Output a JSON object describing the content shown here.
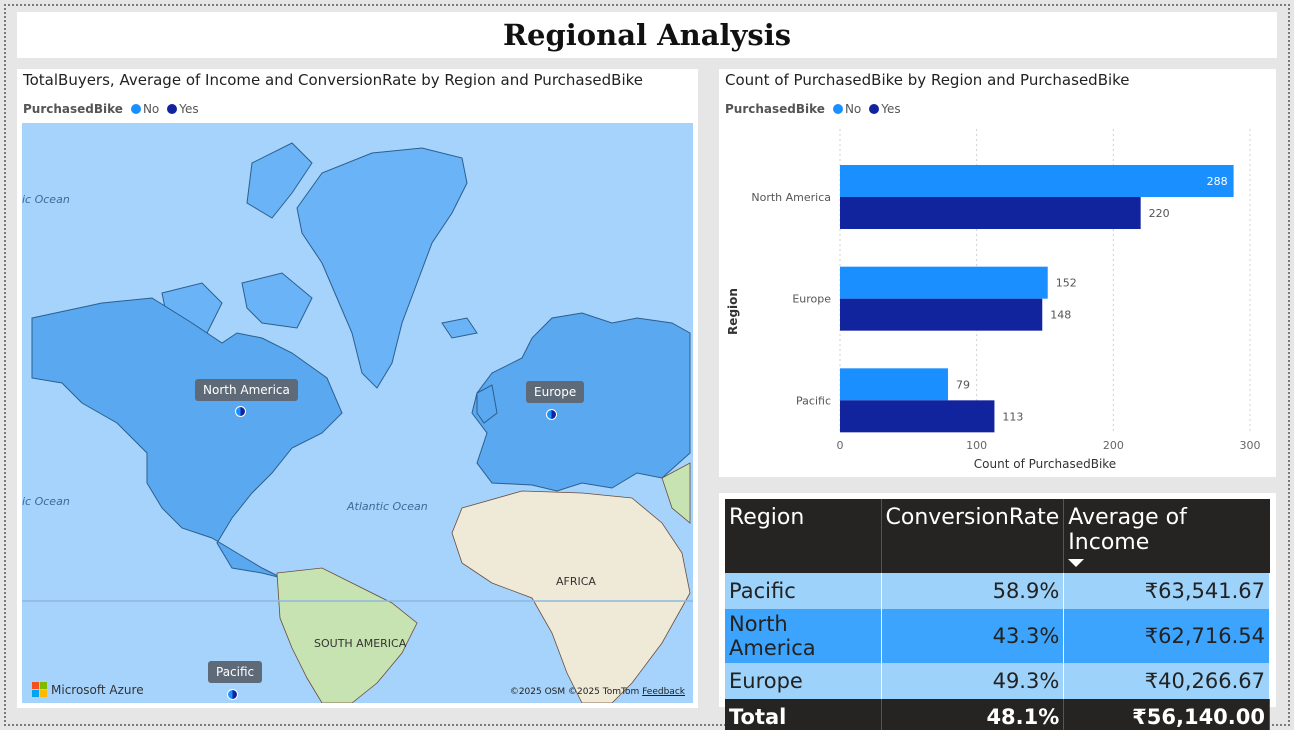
{
  "report": {
    "title": "Regional Analysis"
  },
  "colors": {
    "no": "#1a8fff",
    "yes": "#12239e",
    "table_header": "#252423",
    "row_light": "#9dd2fb",
    "row_dark": "#3da4fd"
  },
  "map": {
    "title": "TotalBuyers, Average of Income and ConversionRate by Region and PurchasedBike",
    "legend": {
      "title": "PurchasedBike",
      "items": [
        {
          "label": "No",
          "color": "#1a8fff"
        },
        {
          "label": "Yes",
          "color": "#12239e"
        }
      ]
    },
    "markers": {
      "north_america": "North America",
      "europe": "Europe",
      "pacific": "Pacific"
    },
    "oceans": {
      "o1": "ic Ocean",
      "o2": "ic Ocean",
      "o3": "Atlantic Ocean"
    },
    "regions": {
      "south_america": "SOUTH AMERICA",
      "africa": "AFRICA"
    },
    "branding": "Microsoft Azure",
    "attribution": "©2025 OSM  ©2025 TomTom",
    "feedback": "Feedback"
  },
  "bar_chart": {
    "title": "Count of PurchasedBike by Region and PurchasedBike",
    "legend": {
      "title": "PurchasedBike",
      "items": [
        {
          "label": "No",
          "color": "#1a8fff"
        },
        {
          "label": "Yes",
          "color": "#12239e"
        }
      ]
    }
  },
  "chart_data": {
    "type": "bar",
    "orientation": "horizontal",
    "title": "Count of PurchasedBike by Region and PurchasedBike",
    "xlabel": "Count of PurchasedBike",
    "ylabel": "Region",
    "categories": [
      "North America",
      "Europe",
      "Pacific"
    ],
    "series": [
      {
        "name": "No",
        "color": "#1a8fff",
        "values": [
          288,
          152,
          79
        ]
      },
      {
        "name": "Yes",
        "color": "#12239e",
        "values": [
          220,
          148,
          113
        ]
      }
    ],
    "xlim": [
      0,
      300
    ],
    "xticks": [
      0,
      100,
      200,
      300
    ],
    "grid": "vertical dotted",
    "legend_position": "top-left"
  },
  "table": {
    "headers": [
      "Region",
      "ConversionRate",
      "Average of Income"
    ],
    "rows": [
      {
        "region": "Pacific",
        "conversion": "58.9%",
        "income": "₹63,541.67"
      },
      {
        "region": "North America",
        "conversion": "43.3%",
        "income": "₹62,716.54"
      },
      {
        "region": "Europe",
        "conversion": "49.3%",
        "income": "₹40,266.67"
      }
    ],
    "total": {
      "label": "Total",
      "conversion": "48.1%",
      "income": "₹56,140.00"
    }
  }
}
